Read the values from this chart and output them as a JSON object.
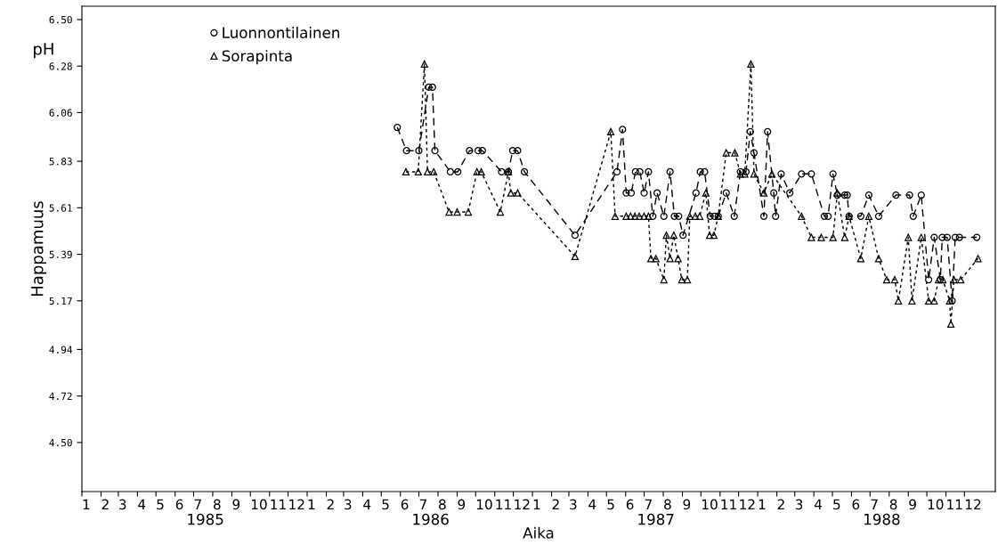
{
  "chart_data": {
    "type": "line",
    "ylabel": "Happamuus",
    "xlabel": "Aika",
    "annotations": [
      "pH",
      "1985",
      "1986",
      "1987",
      "1988"
    ],
    "xlim": [
      "1985-01-01",
      "1989-01-20"
    ],
    "ylim": [
      4.268,
      6.563
    ],
    "yticks": [
      {
        "value": 6.5,
        "label": "6.50"
      },
      {
        "value": 6.28,
        "label": "6.28"
      },
      {
        "value": 6.06,
        "label": "6.06"
      },
      {
        "value": 5.83,
        "label": "5.83"
      },
      {
        "value": 5.61,
        "label": "5.61"
      },
      {
        "value": 5.39,
        "label": "5.39"
      },
      {
        "value": 5.17,
        "label": "5.17"
      },
      {
        "value": 4.94,
        "label": "4.94"
      },
      {
        "value": 4.72,
        "label": "4.72"
      },
      {
        "value": 4.5,
        "label": "4.50"
      }
    ],
    "xticks": [
      {
        "value": "1985-01-01",
        "label": "1"
      },
      {
        "value": "1985-02-01",
        "label": "2"
      },
      {
        "value": "1985-03-01",
        "label": "3"
      },
      {
        "value": "1985-04-01",
        "label": "4"
      },
      {
        "value": "1985-05-01",
        "label": "5"
      },
      {
        "value": "1985-06-01",
        "label": "6"
      },
      {
        "value": "1985-07-01",
        "label": "7"
      },
      {
        "value": "1985-08-01",
        "label": "8"
      },
      {
        "value": "1985-09-01",
        "label": "9"
      },
      {
        "value": "1985-10-01",
        "label": "10"
      },
      {
        "value": "1985-11-01",
        "label": "11"
      },
      {
        "value": "1985-12-01",
        "label": "12"
      },
      {
        "value": "1986-01-01",
        "label": "1"
      },
      {
        "value": "1986-02-01",
        "label": "2"
      },
      {
        "value": "1986-03-01",
        "label": "3"
      },
      {
        "value": "1986-04-01",
        "label": "4"
      },
      {
        "value": "1986-05-01",
        "label": "5"
      },
      {
        "value": "1986-06-01",
        "label": "6"
      },
      {
        "value": "1986-07-01",
        "label": "7"
      },
      {
        "value": "1986-08-01",
        "label": "8"
      },
      {
        "value": "1986-09-01",
        "label": "9"
      },
      {
        "value": "1986-10-01",
        "label": "10"
      },
      {
        "value": "1986-11-01",
        "label": "11"
      },
      {
        "value": "1986-12-01",
        "label": "12"
      },
      {
        "value": "1987-01-01",
        "label": "1"
      },
      {
        "value": "1987-02-01",
        "label": "2"
      },
      {
        "value": "1987-03-01",
        "label": "3"
      },
      {
        "value": "1987-04-01",
        "label": "4"
      },
      {
        "value": "1987-05-01",
        "label": "5"
      },
      {
        "value": "1987-06-01",
        "label": "6"
      },
      {
        "value": "1987-07-01",
        "label": "7"
      },
      {
        "value": "1987-08-01",
        "label": "8"
      },
      {
        "value": "1987-09-01",
        "label": "9"
      },
      {
        "value": "1987-10-01",
        "label": "10"
      },
      {
        "value": "1987-11-01",
        "label": "11"
      },
      {
        "value": "1987-12-01",
        "label": "12"
      },
      {
        "value": "1988-01-01",
        "label": "1"
      },
      {
        "value": "1988-02-01",
        "label": "2"
      },
      {
        "value": "1988-03-01",
        "label": "3"
      },
      {
        "value": "1988-04-01",
        "label": "4"
      },
      {
        "value": "1988-05-01",
        "label": "5"
      },
      {
        "value": "1988-06-01",
        "label": "6"
      },
      {
        "value": "1988-07-01",
        "label": "7"
      },
      {
        "value": "1988-08-01",
        "label": "8"
      },
      {
        "value": "1988-09-01",
        "label": "9"
      },
      {
        "value": "1988-10-01",
        "label": "10"
      },
      {
        "value": "1988-11-01",
        "label": "11"
      },
      {
        "value": "1988-12-01",
        "label": "12"
      }
    ],
    "legend": "top left",
    "grid": false,
    "series": [
      {
        "name": "Luonnontilainen",
        "color": "#000000",
        "marker": "circle",
        "line_style": "dashed",
        "x": [
          "1986-05-27",
          "1986-06-11",
          "1986-07-01",
          "1986-07-17",
          "1986-07-23",
          "1986-07-27",
          "1986-08-21",
          "1986-09-02",
          "1986-09-21",
          "1986-10-05",
          "1986-10-12",
          "1986-11-12",
          "1986-11-23",
          "1986-11-30",
          "1986-12-08",
          "1986-12-19",
          "1987-03-11",
          "1987-05-18",
          "1987-05-27",
          "1987-06-02",
          "1987-06-10",
          "1987-06-17",
          "1987-06-24",
          "1987-07-01",
          "1987-07-08",
          "1987-07-15",
          "1987-07-22",
          "1987-08-02",
          "1987-08-12",
          "1987-08-19",
          "1987-08-26",
          "1987-09-02",
          "1987-09-23",
          "1987-09-30",
          "1987-10-07",
          "1987-10-16",
          "1987-10-23",
          "1987-10-29",
          "1987-11-11",
          "1987-11-24",
          "1987-12-04",
          "1987-12-13",
          "1987-12-20",
          "1987-12-26",
          "1988-01-11",
          "1988-01-17",
          "1988-01-27",
          "1988-01-30",
          "1988-02-08",
          "1988-02-22",
          "1988-03-12",
          "1988-03-28",
          "1988-04-18",
          "1988-04-24",
          "1988-05-02",
          "1988-05-09",
          "1988-05-21",
          "1988-05-25",
          "1988-05-28",
          "1988-06-16",
          "1988-06-29",
          "1988-07-15",
          "1988-08-12",
          "1988-09-03",
          "1988-09-09",
          "1988-09-22",
          "1988-10-04",
          "1988-10-13",
          "1988-10-23",
          "1988-10-26",
          "1988-11-03",
          "1988-11-11",
          "1988-11-16",
          "1988-11-23",
          "1988-12-21"
        ],
        "values": [
          5.99,
          5.88,
          5.88,
          6.18,
          6.18,
          5.88,
          5.78,
          5.78,
          5.88,
          5.88,
          5.88,
          5.78,
          5.78,
          5.88,
          5.88,
          5.78,
          5.48,
          5.78,
          5.98,
          5.68,
          5.68,
          5.78,
          5.78,
          5.68,
          5.78,
          5.57,
          5.68,
          5.57,
          5.78,
          5.57,
          5.57,
          5.48,
          5.68,
          5.78,
          5.78,
          5.57,
          5.57,
          5.57,
          5.68,
          5.57,
          5.78,
          5.78,
          5.97,
          5.87,
          5.57,
          5.97,
          5.68,
          5.57,
          5.77,
          5.68,
          5.77,
          5.77,
          5.57,
          5.57,
          5.77,
          5.67,
          5.67,
          5.67,
          5.57,
          5.57,
          5.67,
          5.57,
          5.67,
          5.67,
          5.57,
          5.67,
          5.27,
          5.47,
          5.27,
          5.47,
          5.47,
          5.17,
          5.47,
          5.47,
          5.47
        ]
      },
      {
        "name": "Sorapinta",
        "color": "#000000",
        "marker": "triangle",
        "line_style": "dotted",
        "x": [
          "1986-06-10",
          "1986-06-30",
          "1986-07-10",
          "1986-07-15",
          "1986-07-25",
          "1986-08-19",
          "1986-09-01",
          "1986-09-19",
          "1986-10-03",
          "1986-10-10",
          "1986-11-10",
          "1986-11-23",
          "1986-11-27",
          "1986-12-08",
          "1987-03-11",
          "1987-05-08",
          "1987-05-15",
          "1987-06-02",
          "1987-06-09",
          "1987-06-16",
          "1987-06-23",
          "1987-07-01",
          "1987-07-08",
          "1987-07-12",
          "1987-07-20",
          "1987-08-02",
          "1987-08-06",
          "1987-08-12",
          "1987-08-18",
          "1987-08-25",
          "1987-08-31",
          "1987-09-09",
          "1987-09-13",
          "1987-09-22",
          "1987-09-29",
          "1987-10-09",
          "1987-10-15",
          "1987-10-22",
          "1987-10-29",
          "1987-11-11",
          "1987-11-25",
          "1987-12-04",
          "1987-12-11",
          "1987-12-21",
          "1987-12-26",
          "1988-01-11",
          "1988-01-24",
          "1988-03-12",
          "1988-03-28",
          "1988-04-13",
          "1988-05-02",
          "1988-05-09",
          "1988-05-21",
          "1988-05-28",
          "1988-06-16",
          "1988-06-29",
          "1988-07-15",
          "1988-07-28",
          "1988-08-10",
          "1988-08-16",
          "1988-09-01",
          "1988-09-07",
          "1988-09-22",
          "1988-10-04",
          "1988-10-13",
          "1988-10-20",
          "1988-10-27",
          "1988-11-07",
          "1988-11-09",
          "1988-11-14",
          "1988-11-25",
          "1988-12-23"
        ],
        "values": [
          5.78,
          5.78,
          6.29,
          5.78,
          5.78,
          5.59,
          5.59,
          5.59,
          5.78,
          5.78,
          5.59,
          5.78,
          5.68,
          5.68,
          5.38,
          5.97,
          5.57,
          5.57,
          5.57,
          5.57,
          5.57,
          5.57,
          5.57,
          5.37,
          5.37,
          5.27,
          5.48,
          5.37,
          5.48,
          5.37,
          5.27,
          5.27,
          5.57,
          5.57,
          5.57,
          5.68,
          5.48,
          5.48,
          5.57,
          5.87,
          5.87,
          5.77,
          5.77,
          6.29,
          5.77,
          5.68,
          5.77,
          5.57,
          5.47,
          5.47,
          5.47,
          5.68,
          5.47,
          5.57,
          5.37,
          5.57,
          5.37,
          5.27,
          5.27,
          5.17,
          5.47,
          5.17,
          5.47,
          5.17,
          5.17,
          5.27,
          5.27,
          5.17,
          5.06,
          5.27,
          5.27,
          5.37
        ]
      }
    ]
  }
}
